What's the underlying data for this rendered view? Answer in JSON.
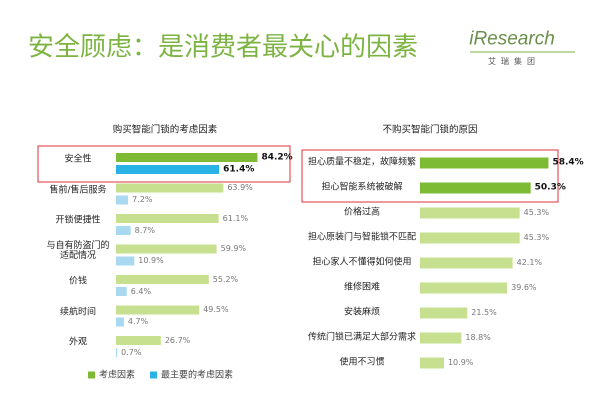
{
  "header": {
    "title": "安全顾虑：是消费者最关心的因素",
    "logo": "iResearch",
    "logo_sub": "艾瑞集团"
  },
  "chart_data": [
    {
      "type": "bar",
      "orientation": "horizontal",
      "title": "购买智能门锁的考虑因素",
      "categories": [
        "安全性",
        "售前/售后服务",
        "开锁便捷性",
        "与自有防盗门的\n适配情况",
        "价钱",
        "续航时间",
        "外观"
      ],
      "series": [
        {
          "name": "考虑因素",
          "color": "#c6e08f",
          "highlight_color": "#7dbb35",
          "values": [
            84.2,
            63.9,
            61.1,
            59.9,
            55.2,
            49.5,
            26.7
          ],
          "value_labels": [
            "84.2%",
            "63.9%",
            "61.1%",
            "59.9%",
            "55.2%",
            "49.5%",
            "26.7%"
          ]
        },
        {
          "name": "最主要的考虑因素",
          "color": "#a9d9f1",
          "highlight_color": "#29b2e6",
          "values": [
            61.4,
            7.2,
            8.7,
            10.9,
            6.4,
            4.7,
            0.7
          ],
          "value_labels": [
            "61.4%",
            "7.2%",
            "8.7%",
            "10.9%",
            "6.4%",
            "4.7%",
            "0.7%"
          ]
        }
      ],
      "highlight_categories": [
        0
      ],
      "highlight_box_color": "#e0323a",
      "legend": "bottom-left"
    },
    {
      "type": "bar",
      "orientation": "horizontal",
      "title": "不购买智能门锁的原因",
      "categories": [
        "担心质量不稳定，故障频繁",
        "担心智能系统被破解",
        "价格过高",
        "担心原装门与智能锁不匹配",
        "担心家人不懂得如何使用",
        "维修困难",
        "安装麻烦",
        "传统门锁已满足大部分需求",
        "使用不习惯"
      ],
      "series": [
        {
          "color": "#c6e08f",
          "highlight_color": "#7dbb35",
          "values": [
            58.4,
            50.3,
            45.3,
            45.3,
            42.1,
            39.6,
            21.5,
            18.8,
            10.9
          ],
          "value_labels": [
            "58.4%",
            "50.3%",
            "45.3%",
            "45.3%",
            "42.1%",
            "39.6%",
            "21.5%",
            "18.8%",
            "10.9%"
          ]
        }
      ],
      "highlight_categories": [
        0,
        1
      ],
      "highlight_box_color": "#e0323a"
    }
  ]
}
